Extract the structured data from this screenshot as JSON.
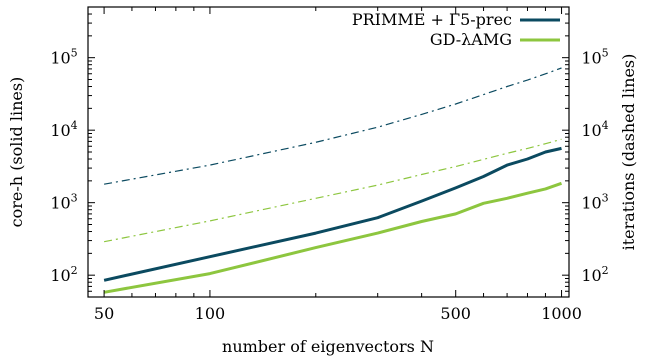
{
  "chart_data": {
    "type": "line",
    "title": "",
    "xlabel": "number of eigenvectors N",
    "ylabel_left": "core-h (solid lines)",
    "ylabel_right": "iterations (dashed lines)",
    "x_scale": "log",
    "y_scale": "log",
    "xlim": [
      45,
      1050
    ],
    "ylim": [
      50,
      500000
    ],
    "x_ticks": [
      50,
      100,
      500,
      1000
    ],
    "y_ticks": [
      {
        "value": 100,
        "label": "10^2"
      },
      {
        "value": 1000,
        "label": "10^3"
      },
      {
        "value": 10000,
        "label": "10^4"
      },
      {
        "value": 100000,
        "label": "10^5"
      }
    ],
    "grid": false,
    "legend_position": "top-right",
    "series": [
      {
        "name": "PRIMME + Γ5-prec",
        "axis": "core-h",
        "style": "solid",
        "color": "#0b4a60",
        "x": [
          50,
          100,
          200,
          300,
          400,
          500,
          600,
          700,
          800,
          900,
          1000
        ],
        "y": [
          85,
          180,
          380,
          620,
          1050,
          1600,
          2300,
          3300,
          4000,
          5000,
          5600
        ]
      },
      {
        "name": "GD-λAMG",
        "axis": "core-h",
        "style": "solid",
        "color": "#8dc63f",
        "x": [
          50,
          100,
          200,
          300,
          400,
          500,
          600,
          700,
          800,
          900,
          1000
        ],
        "y": [
          58,
          105,
          240,
          380,
          550,
          700,
          980,
          1150,
          1350,
          1550,
          1850
        ]
      },
      {
        "axis": "iterations",
        "style": "dashed",
        "color": "#0b4a60",
        "x": [
          50,
          100,
          200,
          300,
          400,
          500,
          600,
          700,
          800,
          900,
          1000
        ],
        "y": [
          1800,
          3300,
          6800,
          11000,
          16500,
          23000,
          31000,
          40000,
          49000,
          60000,
          72000
        ]
      },
      {
        "axis": "iterations",
        "style": "dashed",
        "color": "#8dc63f",
        "x": [
          50,
          100,
          200,
          300,
          400,
          500,
          600,
          700,
          800,
          900,
          1000
        ],
        "y": [
          290,
          560,
          1150,
          1750,
          2450,
          3150,
          3950,
          4800,
          5600,
          6500,
          7500
        ]
      }
    ]
  }
}
